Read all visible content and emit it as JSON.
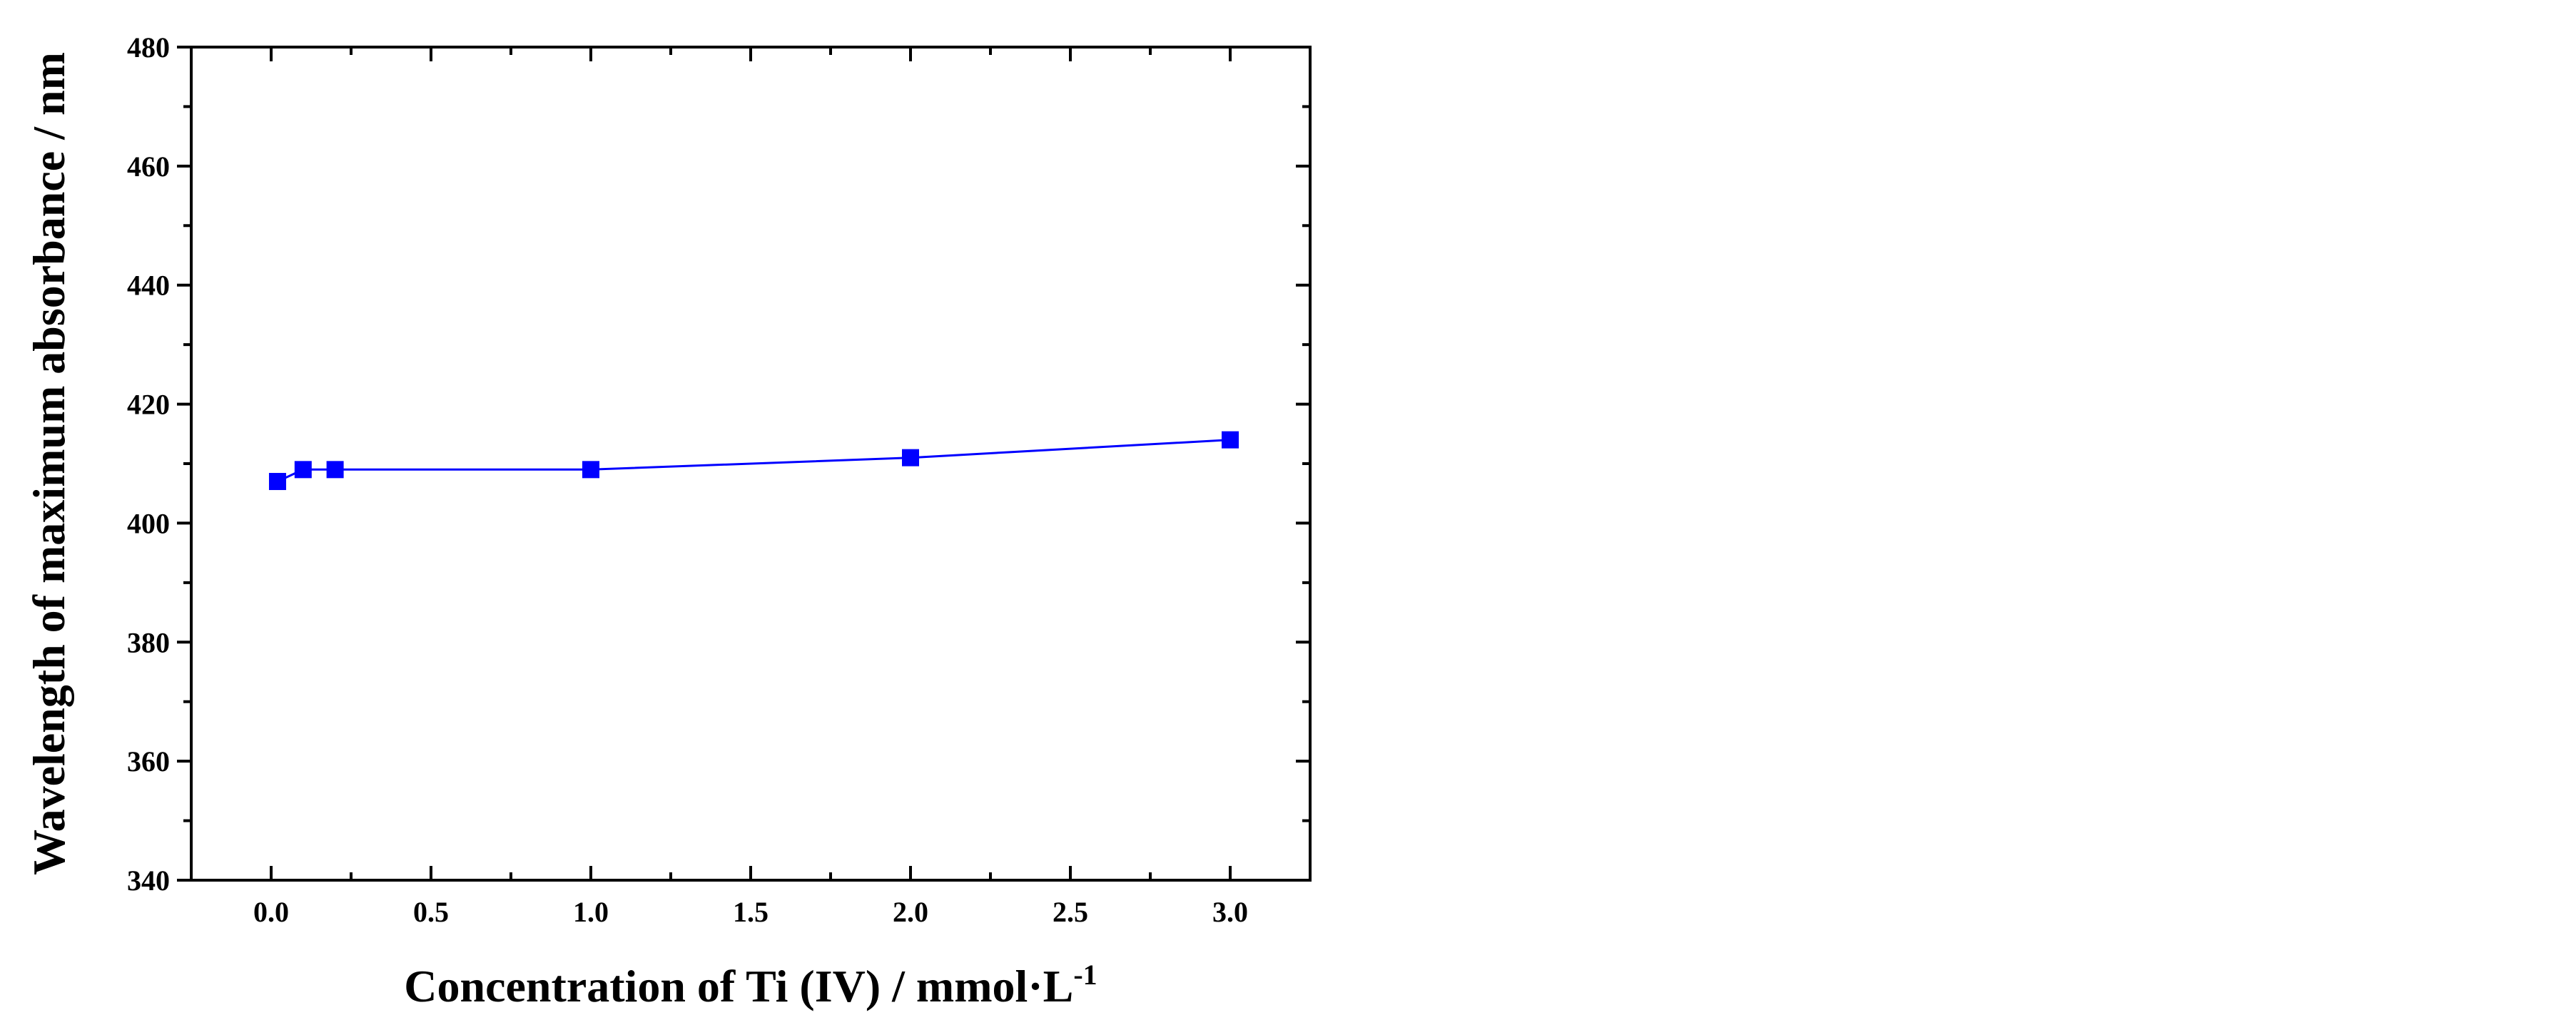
{
  "chart_data": {
    "type": "line",
    "title": "",
    "xlabel": "Concentration of Ti (IV) / mmol·L",
    "xlabel_superscript": "-1",
    "ylabel": "Wavelength of maximum absorbance / nm",
    "xlim": [
      -0.25,
      3.25
    ],
    "ylim": [
      340,
      480
    ],
    "xticks": [
      0.0,
      0.5,
      1.0,
      1.5,
      2.0,
      2.5,
      3.0
    ],
    "xtick_labels": [
      "0.0",
      "0.5",
      "1.0",
      "1.5",
      "2.0",
      "2.5",
      "3.0"
    ],
    "yticks": [
      340,
      360,
      380,
      400,
      420,
      440,
      460,
      480
    ],
    "ytick_labels": [
      "340",
      "360",
      "380",
      "400",
      "420",
      "440",
      "460",
      "480"
    ],
    "grid": false,
    "legend": "none",
    "series": [
      {
        "color": "#0000ff",
        "marker": "square",
        "x": [
          0.02,
          0.1,
          0.2,
          1.0,
          2.0,
          3.0
        ],
        "y": [
          407,
          409,
          409,
          409,
          411,
          414
        ]
      }
    ]
  }
}
